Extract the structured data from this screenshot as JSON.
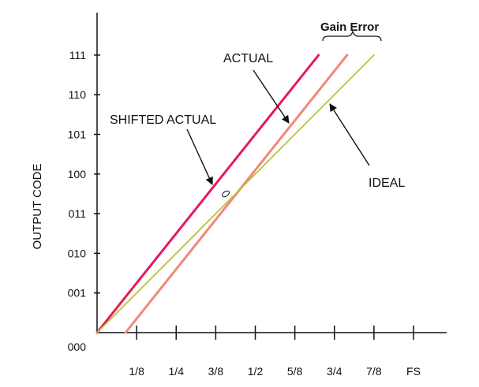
{
  "chart_data": {
    "type": "line",
    "title": "",
    "ylabel": "OUTPUT CODE",
    "xlabel": "",
    "x_ticks": [
      {
        "value": 0.125,
        "label": "1/8"
      },
      {
        "value": 0.25,
        "label": "1/4"
      },
      {
        "value": 0.375,
        "label": "3/8"
      },
      {
        "value": 0.5,
        "label": "1/2"
      },
      {
        "value": 0.625,
        "label": "5/8"
      },
      {
        "value": 0.75,
        "label": "3/4"
      },
      {
        "value": 0.875,
        "label": "7/8"
      },
      {
        "value": 1.0,
        "label": "FS"
      }
    ],
    "y_ticks": [
      {
        "value": 0,
        "label": "000"
      },
      {
        "value": 1,
        "label": "001"
      },
      {
        "value": 2,
        "label": "010"
      },
      {
        "value": 3,
        "label": "011"
      },
      {
        "value": 4,
        "label": "100"
      },
      {
        "value": 5,
        "label": "101"
      },
      {
        "value": 6,
        "label": "110"
      },
      {
        "value": 7,
        "label": "111"
      }
    ],
    "xlim": [
      0,
      1.1
    ],
    "ylim": [
      0,
      8.0
    ],
    "grid": false,
    "series": [
      {
        "key": "shifted",
        "color": "#e8175d",
        "x": [
          0,
          0.7
        ],
        "y": [
          0,
          7.0
        ]
      },
      {
        "key": "actual",
        "color": "#f08878",
        "x": [
          0.09,
          0.79
        ],
        "y": [
          0,
          7.0
        ]
      },
      {
        "key": "ideal",
        "color": "#b8c43a",
        "x": [
          0,
          0.875
        ],
        "y": [
          0,
          7.0
        ]
      }
    ],
    "annotations": {
      "shifted_actual": "SHIFTED ACTUAL",
      "actual": "ACTUAL",
      "ideal": "IDEAL",
      "gain_error": "Gain Error"
    }
  }
}
